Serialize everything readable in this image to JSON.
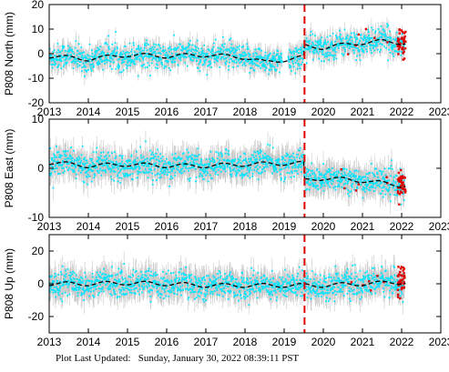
{
  "footer": {
    "label": "Plot Last Updated:",
    "value": "Sunday, January 30, 2022 08:39:11 PST"
  },
  "colors": {
    "data_points": "#00e5ff",
    "error_bars": "#b4b4b4",
    "model_line": "#000000",
    "outliers": "#e00000",
    "event_line": "#e00000"
  },
  "chart_data": [
    {
      "type": "scatter",
      "ylabel": "P808 North (mm)",
      "xlim": [
        2013,
        2023
      ],
      "ylim": [
        -20,
        20
      ],
      "xticks": [
        2013,
        2014,
        2015,
        2016,
        2017,
        2018,
        2019,
        2020,
        2021,
        2022,
        2023
      ],
      "yticks": [
        -20,
        -10,
        0,
        10,
        20
      ],
      "event_line_x": 2019.52,
      "model_trend": [
        [
          2013.0,
          -1.0
        ],
        [
          2014.0,
          -2.2
        ],
        [
          2015.0,
          -0.5
        ],
        [
          2016.0,
          -1.0
        ],
        [
          2017.0,
          -0.5
        ],
        [
          2018.0,
          -1.5
        ],
        [
          2018.5,
          -3.5
        ],
        [
          2019.0,
          -2.5
        ],
        [
          2019.5,
          -1.5
        ],
        [
          2019.52,
          3.0
        ],
        [
          2020.0,
          2.5
        ],
        [
          2020.5,
          3.5
        ],
        [
          2021.0,
          4.5
        ],
        [
          2021.5,
          5.0
        ],
        [
          2022.0,
          4.5
        ]
      ],
      "series": [
        {
          "name": "",
          "kind": "daily_position_with_error_bars"
        },
        {
          "name": "",
          "kind": "model_fit_dashed"
        },
        {
          "name": "",
          "kind": "outliers"
        }
      ]
    },
    {
      "type": "scatter",
      "ylabel": "P808 East (mm)",
      "xlim": [
        2013,
        2023
      ],
      "ylim": [
        -10,
        10
      ],
      "xticks": [
        2013,
        2014,
        2015,
        2016,
        2017,
        2018,
        2019,
        2020,
        2021,
        2022,
        2023
      ],
      "yticks": [
        -10,
        0,
        10
      ],
      "event_line_x": 2019.52,
      "model_trend": [
        [
          2013.0,
          1.2
        ],
        [
          2014.0,
          0.5
        ],
        [
          2015.0,
          0.8
        ],
        [
          2016.0,
          0.5
        ],
        [
          2017.0,
          0.5
        ],
        [
          2018.0,
          0.8
        ],
        [
          2019.0,
          1.0
        ],
        [
          2019.5,
          1.0
        ],
        [
          2019.52,
          -2.5
        ],
        [
          2020.0,
          -2.0
        ],
        [
          2021.0,
          -2.5
        ],
        [
          2022.0,
          -3.5
        ]
      ],
      "series": [
        {
          "name": "",
          "kind": "daily_position_with_error_bars"
        },
        {
          "name": "",
          "kind": "model_fit_dashed"
        },
        {
          "name": "",
          "kind": "outliers"
        }
      ]
    },
    {
      "type": "scatter",
      "ylabel": "P808 Up (mm)",
      "xlim": [
        2013,
        2023
      ],
      "ylim": [
        -30,
        30
      ],
      "xticks": [
        2013,
        2014,
        2015,
        2016,
        2017,
        2018,
        2019,
        2020,
        2021,
        2022,
        2023
      ],
      "yticks": [
        -20,
        0,
        20
      ],
      "event_line_x": 2019.52,
      "model_trend": [
        [
          2013.0,
          0.0
        ],
        [
          2014.0,
          0.0
        ],
        [
          2015.0,
          0.5
        ],
        [
          2016.0,
          0.0
        ],
        [
          2017.0,
          -1.0
        ],
        [
          2018.0,
          -1.0
        ],
        [
          2019.0,
          -1.0
        ],
        [
          2020.0,
          -1.0
        ],
        [
          2021.0,
          0.0
        ],
        [
          2022.0,
          1.0
        ]
      ],
      "series": [
        {
          "name": "",
          "kind": "daily_position_with_error_bars"
        },
        {
          "name": "",
          "kind": "model_fit_dashed"
        },
        {
          "name": "",
          "kind": "outliers"
        }
      ]
    }
  ]
}
